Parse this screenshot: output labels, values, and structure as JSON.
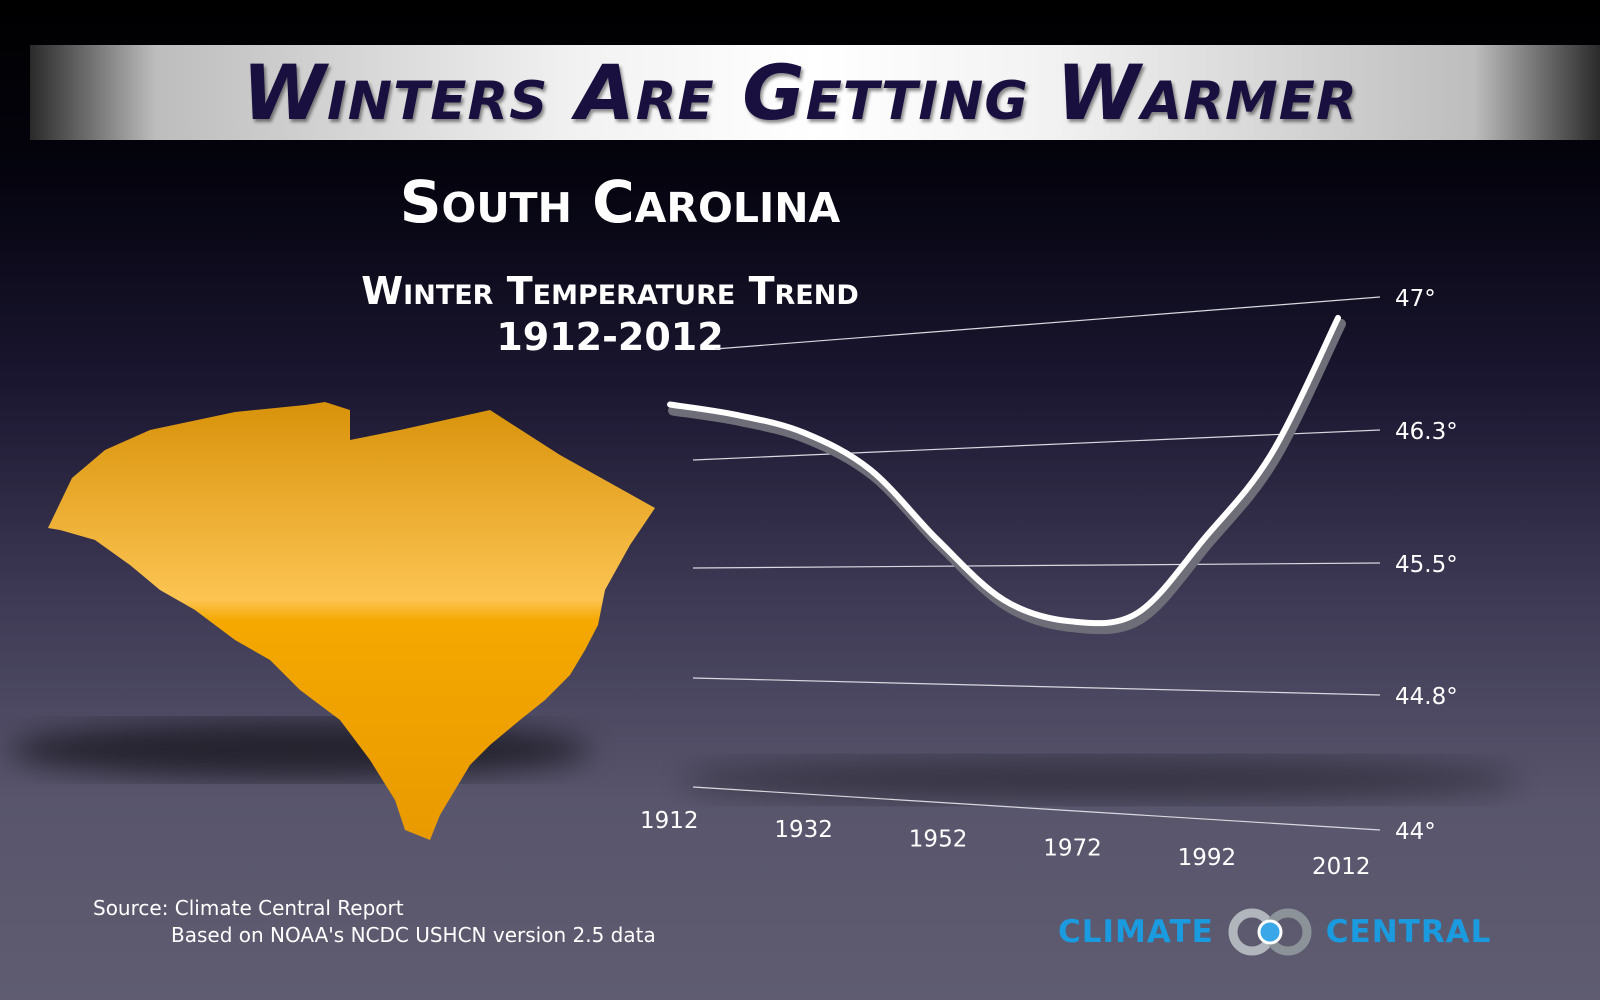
{
  "header": {
    "title": "Winters Are Getting Warmer"
  },
  "state_title": "South Carolina",
  "chart_data": {
    "type": "line",
    "title": "Winter Temperature Trend",
    "subtitle": "1912-2012",
    "x": [
      1912,
      1922,
      1932,
      1942,
      1952,
      1962,
      1972,
      1982,
      1992,
      2002,
      2012
    ],
    "values": [
      46.65,
      46.56,
      46.43,
      46.17,
      45.68,
      45.3,
      45.18,
      45.23,
      45.66,
      46.17,
      46.89
    ],
    "x_ticks": [
      "1912",
      "1932",
      "1952",
      "1972",
      "1992",
      "2012"
    ],
    "y_ticks": [
      {
        "value": 47,
        "label": "47°"
      },
      {
        "value": 46.3,
        "label": "46.3°"
      },
      {
        "value": 45.5,
        "label": "45.5°"
      },
      {
        "value": 44.8,
        "label": "44.8°"
      },
      {
        "value": 44,
        "label": "44°"
      }
    ],
    "ylim": [
      44,
      47
    ],
    "xlim": [
      1912,
      2012
    ],
    "grid": true,
    "line_color": "#ffffff"
  },
  "map_color": "#f5a800",
  "source": {
    "line1": "Source:  Climate Central Report",
    "line2": "Based on NOAA's NCDC USHCN version 2.5 data"
  },
  "logo": {
    "left": "CLIMATE",
    "right": "CENTRAL",
    "accent": "#1a9be0"
  }
}
